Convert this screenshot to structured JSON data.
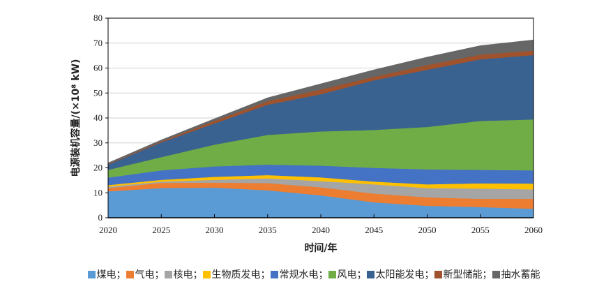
{
  "chart_data": {
    "type": "area",
    "stacked": true,
    "title": "",
    "xlabel": "时间/年",
    "ylabel": "电源装机容量/(×10⁸ kW)",
    "x": [
      2020,
      2025,
      2030,
      2035,
      2040,
      2045,
      2050,
      2055,
      2060
    ],
    "xlim": [
      2020,
      2060
    ],
    "ylim": [
      0,
      80
    ],
    "xticks": [
      "2020",
      "2025",
      "2030",
      "2035",
      "2040",
      "2045",
      "2050",
      "2055",
      "2060"
    ],
    "yticks": [
      "0",
      "10",
      "20",
      "30",
      "40",
      "50",
      "60",
      "70",
      "80"
    ],
    "grid": true,
    "legend_position": "bottom",
    "legend_separator": "；",
    "series": [
      {
        "name": "煤电",
        "color": "#5b9bd5",
        "values": [
          10.6,
          11.9,
          12.1,
          11.0,
          9.0,
          6.2,
          4.8,
          4.3,
          3.6
        ]
      },
      {
        "name": "气电",
        "color": "#ed7d31",
        "values": [
          1.3,
          2.1,
          2.0,
          2.9,
          3.2,
          3.5,
          3.4,
          3.3,
          4.0
        ]
      },
      {
        "name": "核电",
        "color": "#a5a5a5",
        "values": [
          0.6,
          0.5,
          1.1,
          1.9,
          2.5,
          3.7,
          3.7,
          4.1,
          3.8
        ]
      },
      {
        "name": "生物质发电",
        "color": "#ffc000",
        "values": [
          0.6,
          0.7,
          1.2,
          1.3,
          1.5,
          1.1,
          1.5,
          2.1,
          2.3
        ]
      },
      {
        "name": "常规水电",
        "color": "#4472c4",
        "values": [
          3.0,
          3.8,
          4.2,
          4.2,
          4.7,
          5.5,
          6.0,
          5.4,
          5.3
        ]
      },
      {
        "name": "风电",
        "color": "#70ad47",
        "values": [
          3.1,
          5.3,
          8.7,
          11.9,
          13.7,
          15.2,
          17.0,
          19.6,
          20.4
        ]
      },
      {
        "name": "太阳能发电",
        "color": "#3a6290",
        "values": [
          2.1,
          5.9,
          8.5,
          12.1,
          14.9,
          19.9,
          22.9,
          24.7,
          25.8
        ]
      },
      {
        "name": "新型储能",
        "color": "#a0522d",
        "values": [
          0.2,
          0.4,
          1.0,
          1.4,
          1.9,
          1.4,
          1.9,
          1.9,
          1.8
        ]
      },
      {
        "name": "抽水蓄能",
        "color": "#666666",
        "values": [
          0.5,
          0.6,
          0.9,
          1.4,
          2.3,
          2.8,
          3.2,
          3.6,
          4.3
        ]
      }
    ]
  }
}
